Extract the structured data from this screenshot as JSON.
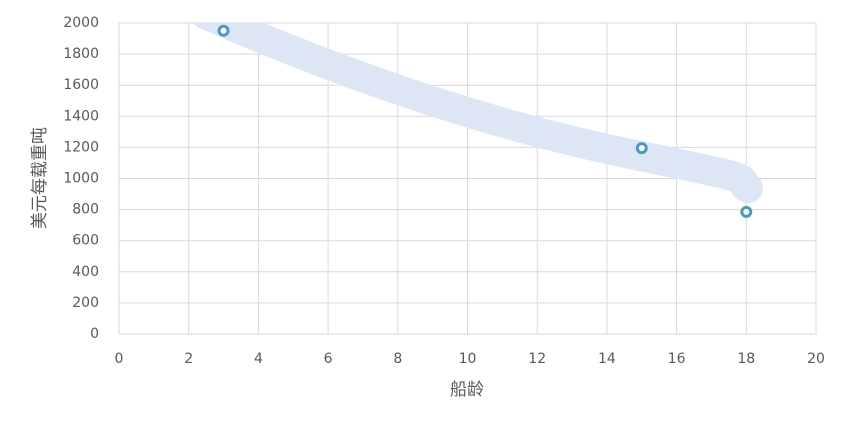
{
  "chart_data": {
    "type": "scatter",
    "x_label": "船龄",
    "y_label": "美元每载重吨",
    "x": [
      3,
      15,
      18
    ],
    "values": [
      1950,
      1195,
      785
    ],
    "color": "#4a9abd",
    "xlim": [
      0,
      20
    ],
    "xticks": [
      0,
      2,
      4,
      6,
      8,
      10,
      12,
      14,
      16,
      18,
      20
    ],
    "ylim": [
      0,
      2000
    ],
    "yticks": [
      0,
      200,
      400,
      600,
      800,
      1000,
      1200,
      1400,
      1600,
      1800,
      2000
    ],
    "grid": true
  }
}
